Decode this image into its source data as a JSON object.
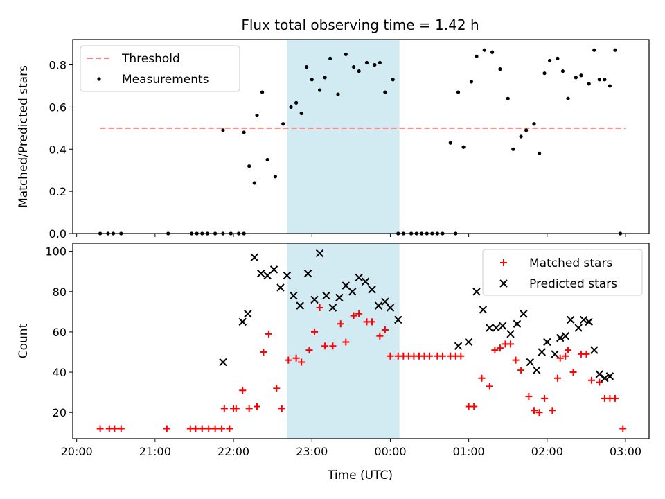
{
  "chart_data": [
    {
      "type": "scatter",
      "title": "Flux total observing time = 1.42 h",
      "xlabel": "",
      "ylabel": "Matched/Predicted stars",
      "xlim": [
        "19:57",
        "03:18"
      ],
      "ylim": [
        0,
        0.92
      ],
      "x_ticks": [
        "20:00",
        "21:00",
        "22:00",
        "23:00",
        "00:00",
        "01:00",
        "02:00",
        "03:00"
      ],
      "y_ticks": [
        "0.0",
        "0.2",
        "0.4",
        "0.6",
        "0.8"
      ],
      "y_tick_values": [
        0,
        0.2,
        0.4,
        0.6,
        0.8
      ],
      "shaded_span": {
        "start": "22:41",
        "end": "00:07",
        "color": "#add8e6"
      },
      "legend": {
        "position": "top-left",
        "entries": [
          "Threshold",
          "Measurements"
        ]
      },
      "series": [
        {
          "name": "Threshold",
          "kind": "dashed-line",
          "color": "#ff7f7f",
          "x": [
            "20:18",
            "03:00"
          ],
          "y": [
            0.5,
            0.5
          ]
        },
        {
          "name": "Measurements",
          "kind": "points",
          "color": "#000000",
          "x": [
            "20:18",
            "20:24",
            "20:28",
            "20:34",
            "21:10",
            "21:28",
            "21:32",
            "21:36",
            "21:40",
            "21:46",
            "21:52",
            "21:58",
            "22:04",
            "22:08",
            "21:52",
            "22:08",
            "22:12",
            "22:16",
            "22:18",
            "22:22",
            "22:26",
            "22:32",
            "22:38",
            "22:44",
            "22:48",
            "22:52",
            "22:56",
            "23:00",
            "23:06",
            "23:10",
            "23:14",
            "23:20",
            "23:26",
            "23:32",
            "23:36",
            "23:42",
            "23:48",
            "23:52",
            "23:56",
            "00:02",
            "00:06",
            "00:10",
            "00:16",
            "00:20",
            "00:24",
            "00:28",
            "00:32",
            "00:36",
            "00:40",
            "00:46",
            "00:50",
            "00:52",
            "00:56",
            "01:02",
            "01:06",
            "01:12",
            "01:18",
            "01:24",
            "01:30",
            "01:34",
            "01:40",
            "01:44",
            "01:50",
            "01:54",
            "01:58",
            "02:02",
            "02:08",
            "02:12",
            "02:16",
            "02:22",
            "02:26",
            "02:32",
            "02:36",
            "02:40",
            "02:44",
            "02:48",
            "02:52",
            "02:56"
          ],
          "y": [
            0,
            0,
            0,
            0,
            0,
            0,
            0,
            0,
            0,
            0,
            0,
            0,
            0,
            0,
            0.49,
            0.48,
            0.32,
            0.24,
            0.56,
            0.67,
            0.35,
            0.27,
            0.52,
            0.6,
            0.62,
            0.57,
            0.79,
            0.73,
            0.68,
            0.74,
            0.83,
            0.66,
            0.85,
            0.79,
            0.77,
            0.81,
            0.8,
            0.81,
            0.67,
            0.73,
            0,
            0,
            0,
            0,
            0,
            0,
            0,
            0,
            0,
            0.43,
            0,
            0.67,
            0.41,
            0.72,
            0.84,
            0.87,
            0.86,
            0.78,
            0.64,
            0.4,
            0.46,
            0.49,
            0.52,
            0.38,
            0.76,
            0.82,
            0.83,
            0.77,
            0.64,
            0.74,
            0.75,
            0.71,
            0.87,
            0.73,
            0.73,
            0.7,
            0.87,
            0
          ]
        }
      ]
    },
    {
      "type": "scatter",
      "title": "",
      "xlabel": "Time (UTC)",
      "ylabel": "Count",
      "xlim": [
        "19:57",
        "03:18"
      ],
      "ylim": [
        7,
        104
      ],
      "x_ticks": [
        "20:00",
        "21:00",
        "22:00",
        "23:00",
        "00:00",
        "01:00",
        "02:00",
        "03:00"
      ],
      "y_ticks": [
        "20",
        "40",
        "60",
        "80",
        "100"
      ],
      "y_tick_values": [
        20,
        40,
        60,
        80,
        100
      ],
      "shaded_span": {
        "start": "22:41",
        "end": "00:07",
        "color": "#add8e6"
      },
      "legend": {
        "position": "top-right",
        "entries": [
          "Matched stars",
          "Predicted stars"
        ]
      },
      "series": [
        {
          "name": "Matched stars",
          "marker": "plus",
          "color": "#ff0000",
          "x": [
            "20:18",
            "20:25",
            "20:29",
            "20:34",
            "21:09",
            "21:27",
            "21:31",
            "21:36",
            "21:41",
            "21:46",
            "21:51",
            "21:57",
            "21:53",
            "22:00",
            "22:02",
            "22:07",
            "22:12",
            "22:18",
            "22:23",
            "22:27",
            "22:33",
            "22:37",
            "22:42",
            "22:48",
            "22:52",
            "22:58",
            "23:02",
            "23:06",
            "23:10",
            "23:16",
            "23:22",
            "23:26",
            "23:32",
            "23:36",
            "23:42",
            "23:46",
            "23:52",
            "23:56",
            "00:00",
            "00:06",
            "00:10",
            "00:14",
            "00:18",
            "00:22",
            "00:26",
            "00:30",
            "00:36",
            "00:40",
            "00:46",
            "00:50",
            "00:54",
            "01:00",
            "01:04",
            "01:10",
            "01:16",
            "01:20",
            "01:24",
            "01:28",
            "01:32",
            "01:36",
            "01:40",
            "01:46",
            "01:50",
            "01:54",
            "01:58",
            "02:04",
            "02:08",
            "02:10",
            "02:14",
            "02:16",
            "02:20",
            "02:26",
            "02:30",
            "02:34",
            "02:40",
            "02:44",
            "02:48",
            "02:52",
            "02:58"
          ],
          "y": [
            12,
            12,
            12,
            12,
            12,
            12,
            12,
            12,
            12,
            12,
            12,
            12,
            22,
            22,
            22,
            31,
            22,
            23,
            50,
            59,
            32,
            22,
            46,
            47,
            45,
            51,
            60,
            72,
            53,
            53,
            64,
            55,
            68,
            69,
            65,
            65,
            58,
            61,
            48,
            48,
            48,
            48,
            48,
            48,
            48,
            48,
            48,
            48,
            48,
            48,
            48,
            23,
            23,
            37,
            33,
            51,
            52,
            54,
            54,
            46,
            41,
            28,
            21,
            20,
            27,
            21,
            37,
            47,
            48,
            51,
            40,
            49,
            49,
            36,
            35,
            27,
            27,
            27,
            12
          ]
        },
        {
          "name": "Predicted stars",
          "marker": "x",
          "color": "#000000",
          "x": [
            "21:52",
            "22:07",
            "22:11",
            "22:16",
            "22:21",
            "22:26",
            "22:31",
            "22:36",
            "22:41",
            "22:46",
            "22:51",
            "22:57",
            "23:02",
            "23:06",
            "23:11",
            "23:16",
            "23:21",
            "23:26",
            "23:31",
            "23:36",
            "23:41",
            "23:46",
            "23:51",
            "23:56",
            "00:00",
            "00:06",
            "00:52",
            "01:00",
            "01:06",
            "01:11",
            "01:16",
            "01:21",
            "01:26",
            "01:32",
            "01:37",
            "01:42",
            "01:47",
            "01:52",
            "01:56",
            "02:00",
            "02:06",
            "02:10",
            "02:14",
            "02:18",
            "02:24",
            "02:28",
            "02:32",
            "02:36",
            "02:40",
            "02:44",
            "02:48"
          ],
          "y": [
            45,
            65,
            69,
            97,
            89,
            88,
            91,
            82,
            88,
            78,
            73,
            89,
            76,
            99,
            78,
            72,
            77,
            83,
            80,
            87,
            85,
            81,
            73,
            75,
            72,
            66,
            53,
            55,
            80,
            71,
            62,
            62,
            63,
            59,
            64,
            69,
            45,
            41,
            50,
            55,
            49,
            57,
            58,
            66,
            62,
            66,
            65,
            51,
            39,
            37,
            38
          ]
        }
      ]
    }
  ]
}
